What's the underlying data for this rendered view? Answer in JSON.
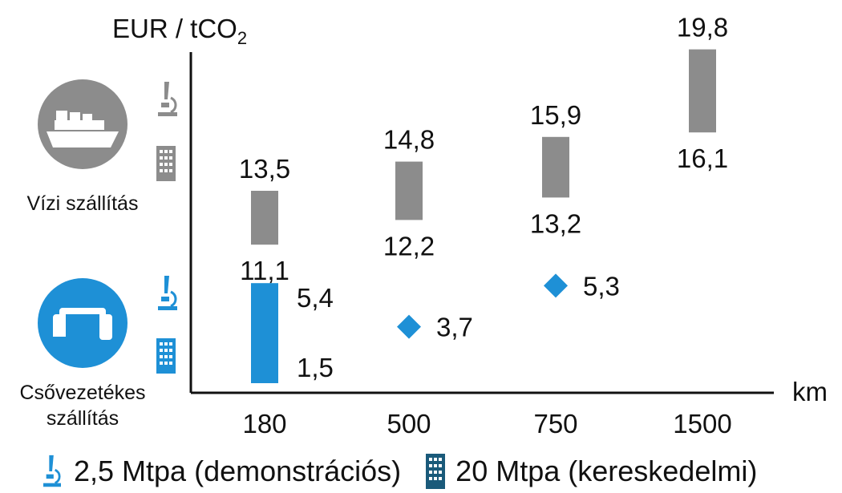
{
  "chart_data": {
    "type": "range-bar",
    "ylabel": "EUR / tCO",
    "ylabel_subscript": "2",
    "xlabel": "km",
    "categories": [
      "180",
      "500",
      "750",
      "1500"
    ],
    "groups": [
      {
        "name": "Vízi szállítás",
        "icon": "ship-icon",
        "color": "#8c8c8c",
        "ranges": [
          {
            "x": "180",
            "low": 11.1,
            "high": 13.5,
            "low_label": "11,1",
            "high_label": "13,5"
          },
          {
            "x": "500",
            "low": 12.2,
            "high": 14.8,
            "low_label": "12,2",
            "high_label": "14,8"
          },
          {
            "x": "750",
            "low": 13.2,
            "high": 15.9,
            "low_label": "13,2",
            "high_label": "15,9"
          },
          {
            "x": "1500",
            "low": 16.1,
            "high": 19.8,
            "low_label": "16,1",
            "high_label": "19,8"
          }
        ]
      },
      {
        "name": "Csővezetékes szállítás",
        "name_lines": [
          "Csővezetékes",
          "szállítás"
        ],
        "icon": "pipeline-icon",
        "color": "#1e90d6",
        "ranges": [
          {
            "x": "180",
            "low": 1.5,
            "high": 5.4,
            "low_label": "1,5",
            "high_label": "5,4"
          }
        ],
        "points": [
          {
            "x": "500",
            "value": 3.7,
            "label": "3,7"
          },
          {
            "x": "750",
            "value": 5.3,
            "label": "5,3"
          }
        ]
      }
    ],
    "legend": [
      {
        "icon": "microscope-icon",
        "label": "2,5 Mtpa (demonstrációs)"
      },
      {
        "icon": "building-icon",
        "label": "20 Mtpa (kereskedelmi)"
      }
    ]
  }
}
